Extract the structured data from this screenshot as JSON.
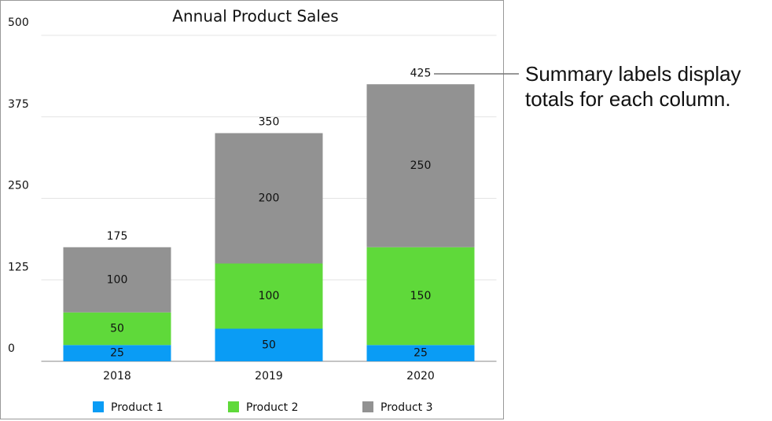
{
  "chart_data": {
    "type": "stacked-bar",
    "title": "Annual Product Sales",
    "categories": [
      "2018",
      "2019",
      "2020"
    ],
    "series": [
      {
        "name": "Product 1",
        "color": "#0a9cf5",
        "values": [
          25,
          50,
          25
        ]
      },
      {
        "name": "Product 2",
        "color": "#5fd93a",
        "values": [
          50,
          100,
          150
        ]
      },
      {
        "name": "Product 3",
        "color": "#929292",
        "values": [
          100,
          200,
          250
        ]
      }
    ],
    "totals": [
      175,
      350,
      425
    ],
    "ylim": [
      0,
      500
    ],
    "yticks": [
      0,
      125,
      250,
      375,
      500
    ],
    "grid": true,
    "legend": "bottom",
    "annotation": "Summary labels display totals for each column."
  }
}
